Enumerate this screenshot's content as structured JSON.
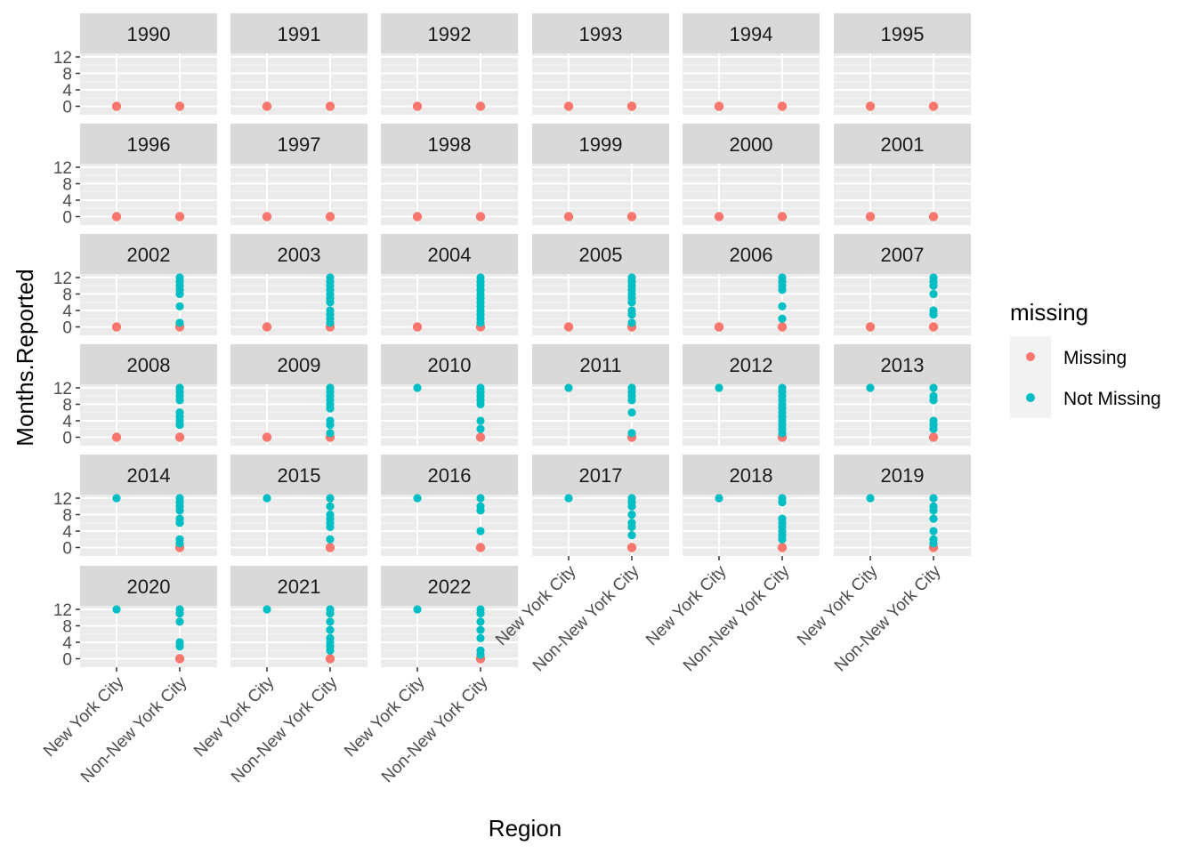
{
  "chart_data": {
    "type": "scatter",
    "xlabel": "Region",
    "ylabel": "Months.Reported",
    "x_categories": [
      "New York City",
      "Non-New York City"
    ],
    "y_ticks": [
      0,
      4,
      8,
      12
    ],
    "ylim": [
      0,
      12
    ],
    "facet_by": "year",
    "legend": {
      "title": "missing",
      "position": "right",
      "items": [
        {
          "label": "Missing",
          "color": "#F8766D"
        },
        {
          "label": "Not Missing",
          "color": "#00BFC4"
        }
      ]
    },
    "panels": [
      {
        "year": "1990",
        "points": [
          {
            "region": "New York City",
            "missing": [
              0
            ],
            "not_missing": []
          },
          {
            "region": "Non-New York City",
            "missing": [
              0
            ],
            "not_missing": []
          }
        ]
      },
      {
        "year": "1991",
        "points": [
          {
            "region": "New York City",
            "missing": [
              0
            ],
            "not_missing": []
          },
          {
            "region": "Non-New York City",
            "missing": [
              0
            ],
            "not_missing": []
          }
        ]
      },
      {
        "year": "1992",
        "points": [
          {
            "region": "New York City",
            "missing": [
              0
            ],
            "not_missing": []
          },
          {
            "region": "Non-New York City",
            "missing": [
              0
            ],
            "not_missing": []
          }
        ]
      },
      {
        "year": "1993",
        "points": [
          {
            "region": "New York City",
            "missing": [
              0
            ],
            "not_missing": []
          },
          {
            "region": "Non-New York City",
            "missing": [
              0
            ],
            "not_missing": []
          }
        ]
      },
      {
        "year": "1994",
        "points": [
          {
            "region": "New York City",
            "missing": [
              0
            ],
            "not_missing": []
          },
          {
            "region": "Non-New York City",
            "missing": [
              0
            ],
            "not_missing": []
          }
        ]
      },
      {
        "year": "1995",
        "points": [
          {
            "region": "New York City",
            "missing": [
              0
            ],
            "not_missing": []
          },
          {
            "region": "Non-New York City",
            "missing": [
              0
            ],
            "not_missing": []
          }
        ]
      },
      {
        "year": "1996",
        "points": [
          {
            "region": "New York City",
            "missing": [
              0
            ],
            "not_missing": []
          },
          {
            "region": "Non-New York City",
            "missing": [
              0
            ],
            "not_missing": []
          }
        ]
      },
      {
        "year": "1997",
        "points": [
          {
            "region": "New York City",
            "missing": [
              0
            ],
            "not_missing": []
          },
          {
            "region": "Non-New York City",
            "missing": [
              0
            ],
            "not_missing": []
          }
        ]
      },
      {
        "year": "1998",
        "points": [
          {
            "region": "New York City",
            "missing": [
              0
            ],
            "not_missing": []
          },
          {
            "region": "Non-New York City",
            "missing": [
              0
            ],
            "not_missing": []
          }
        ]
      },
      {
        "year": "1999",
        "points": [
          {
            "region": "New York City",
            "missing": [
              0
            ],
            "not_missing": []
          },
          {
            "region": "Non-New York City",
            "missing": [
              0
            ],
            "not_missing": []
          }
        ]
      },
      {
        "year": "2000",
        "points": [
          {
            "region": "New York City",
            "missing": [
              0
            ],
            "not_missing": []
          },
          {
            "region": "Non-New York City",
            "missing": [
              0
            ],
            "not_missing": []
          }
        ]
      },
      {
        "year": "2001",
        "points": [
          {
            "region": "New York City",
            "missing": [
              0
            ],
            "not_missing": []
          },
          {
            "region": "Non-New York City",
            "missing": [
              0
            ],
            "not_missing": []
          }
        ]
      },
      {
        "year": "2002",
        "points": [
          {
            "region": "New York City",
            "missing": [
              0
            ],
            "not_missing": []
          },
          {
            "region": "Non-New York City",
            "missing": [
              0
            ],
            "not_missing": [
              1,
              5,
              8,
              9,
              10,
              11,
              12
            ]
          }
        ]
      },
      {
        "year": "2003",
        "points": [
          {
            "region": "New York City",
            "missing": [
              0
            ],
            "not_missing": []
          },
          {
            "region": "Non-New York City",
            "missing": [
              0
            ],
            "not_missing": [
              1,
              2,
              3,
              4,
              6,
              7,
              8,
              9,
              10,
              11,
              12
            ]
          }
        ]
      },
      {
        "year": "2004",
        "points": [
          {
            "region": "New York City",
            "missing": [
              0
            ],
            "not_missing": []
          },
          {
            "region": "Non-New York City",
            "missing": [
              0
            ],
            "not_missing": [
              1,
              2,
              3,
              4,
              5,
              6,
              7,
              8,
              9,
              10,
              11,
              12
            ]
          }
        ]
      },
      {
        "year": "2005",
        "points": [
          {
            "region": "New York City",
            "missing": [
              0
            ],
            "not_missing": []
          },
          {
            "region": "Non-New York City",
            "missing": [
              0
            ],
            "not_missing": [
              1,
              3,
              4,
              6,
              7,
              8,
              9,
              10,
              11,
              12
            ]
          }
        ]
      },
      {
        "year": "2006",
        "points": [
          {
            "region": "New York City",
            "missing": [
              0
            ],
            "not_missing": []
          },
          {
            "region": "Non-New York City",
            "missing": [
              0
            ],
            "not_missing": [
              2,
              5,
              9,
              10,
              11,
              12
            ]
          }
        ]
      },
      {
        "year": "2007",
        "points": [
          {
            "region": "New York City",
            "missing": [
              0
            ],
            "not_missing": []
          },
          {
            "region": "Non-New York City",
            "missing": [
              0
            ],
            "not_missing": [
              3,
              4,
              8,
              10,
              11,
              12
            ]
          }
        ]
      },
      {
        "year": "2008",
        "points": [
          {
            "region": "New York City",
            "missing": [
              0
            ],
            "not_missing": []
          },
          {
            "region": "Non-New York City",
            "missing": [
              0
            ],
            "not_missing": [
              3,
              4,
              5,
              6,
              9,
              10,
              11,
              12
            ]
          }
        ]
      },
      {
        "year": "2009",
        "points": [
          {
            "region": "New York City",
            "missing": [
              0
            ],
            "not_missing": []
          },
          {
            "region": "Non-New York City",
            "missing": [
              0
            ],
            "not_missing": [
              1,
              3,
              4,
              7,
              8,
              9,
              10,
              11,
              12
            ]
          }
        ]
      },
      {
        "year": "2010",
        "points": [
          {
            "region": "New York City",
            "missing": [],
            "not_missing": [
              12
            ]
          },
          {
            "region": "Non-New York City",
            "missing": [
              0
            ],
            "not_missing": [
              2,
              4,
              8,
              9,
              10,
              11,
              12
            ]
          }
        ]
      },
      {
        "year": "2011",
        "points": [
          {
            "region": "New York City",
            "missing": [],
            "not_missing": [
              12
            ]
          },
          {
            "region": "Non-New York City",
            "missing": [
              0
            ],
            "not_missing": [
              1,
              6,
              9,
              10,
              11,
              12
            ]
          }
        ]
      },
      {
        "year": "2012",
        "points": [
          {
            "region": "New York City",
            "missing": [],
            "not_missing": [
              12
            ]
          },
          {
            "region": "Non-New York City",
            "missing": [
              0
            ],
            "not_missing": [
              1,
              2,
              3,
              4,
              5,
              6,
              7,
              8,
              9,
              10,
              11,
              12
            ]
          }
        ]
      },
      {
        "year": "2013",
        "points": [
          {
            "region": "New York City",
            "missing": [],
            "not_missing": [
              12
            ]
          },
          {
            "region": "Non-New York City",
            "missing": [
              0
            ],
            "not_missing": [
              2,
              3,
              4,
              9,
              10,
              12
            ]
          }
        ]
      },
      {
        "year": "2014",
        "points": [
          {
            "region": "New York City",
            "missing": [],
            "not_missing": [
              12
            ]
          },
          {
            "region": "Non-New York City",
            "missing": [
              0
            ],
            "not_missing": [
              1,
              2,
              6,
              7,
              9,
              10,
              11,
              12
            ]
          }
        ]
      },
      {
        "year": "2015",
        "points": [
          {
            "region": "New York City",
            "missing": [],
            "not_missing": [
              12
            ]
          },
          {
            "region": "Non-New York City",
            "missing": [
              0
            ],
            "not_missing": [
              2,
              5,
              6,
              7,
              8,
              10,
              12
            ]
          }
        ]
      },
      {
        "year": "2016",
        "points": [
          {
            "region": "New York City",
            "missing": [],
            "not_missing": [
              12
            ]
          },
          {
            "region": "Non-New York City",
            "missing": [
              0
            ],
            "not_missing": [
              4,
              9,
              10,
              12
            ]
          }
        ]
      },
      {
        "year": "2017",
        "points": [
          {
            "region": "New York City",
            "missing": [],
            "not_missing": [
              12
            ]
          },
          {
            "region": "Non-New York City",
            "missing": [
              0
            ],
            "not_missing": [
              3,
              5,
              6,
              8,
              10,
              11,
              12
            ]
          }
        ]
      },
      {
        "year": "2018",
        "points": [
          {
            "region": "New York City",
            "missing": [],
            "not_missing": [
              12
            ]
          },
          {
            "region": "Non-New York City",
            "missing": [
              0
            ],
            "not_missing": [
              2,
              3,
              4,
              5,
              6,
              7,
              11,
              12
            ]
          }
        ]
      },
      {
        "year": "2019",
        "points": [
          {
            "region": "New York City",
            "missing": [],
            "not_missing": [
              12
            ]
          },
          {
            "region": "Non-New York City",
            "missing": [
              0
            ],
            "not_missing": [
              1,
              2,
              4,
              7,
              9,
              10,
              12
            ]
          }
        ]
      },
      {
        "year": "2020",
        "points": [
          {
            "region": "New York City",
            "missing": [],
            "not_missing": [
              12
            ]
          },
          {
            "region": "Non-New York City",
            "missing": [
              0
            ],
            "not_missing": [
              3,
              4,
              9,
              11,
              12
            ]
          }
        ]
      },
      {
        "year": "2021",
        "points": [
          {
            "region": "New York City",
            "missing": [],
            "not_missing": [
              12
            ]
          },
          {
            "region": "Non-New York City",
            "missing": [
              0
            ],
            "not_missing": [
              2,
              3,
              4,
              5,
              7,
              9,
              11,
              12
            ]
          }
        ]
      },
      {
        "year": "2022",
        "points": [
          {
            "region": "New York City",
            "missing": [],
            "not_missing": [
              12
            ]
          },
          {
            "region": "Non-New York City",
            "missing": [
              0
            ],
            "not_missing": [
              1,
              2,
              5,
              7,
              9,
              11,
              12
            ]
          }
        ]
      }
    ]
  }
}
